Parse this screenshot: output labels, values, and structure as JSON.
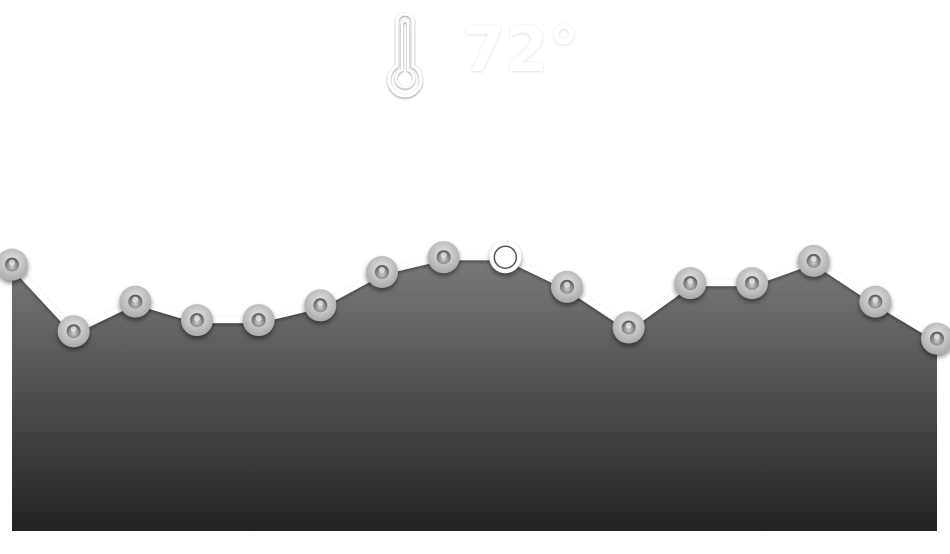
{
  "header": {
    "icon": "thermometer-icon",
    "reading": "72°"
  },
  "chart_data": {
    "type": "area",
    "title": "",
    "xlabel": "",
    "ylabel": "",
    "grid": false,
    "legend": "none",
    "ylim": [
      0,
      100
    ],
    "values": [
      72,
      54,
      62,
      57,
      57,
      61,
      70,
      74,
      74,
      66,
      55,
      67,
      67,
      73,
      62,
      52
    ],
    "highlight_index": 8,
    "colors": {
      "fill_top": "#7a7a7a",
      "fill_bottom": "#232323",
      "line": "#ffffff",
      "marker": "#c9c9c9",
      "marker_dark": "#6e6e6e"
    }
  }
}
